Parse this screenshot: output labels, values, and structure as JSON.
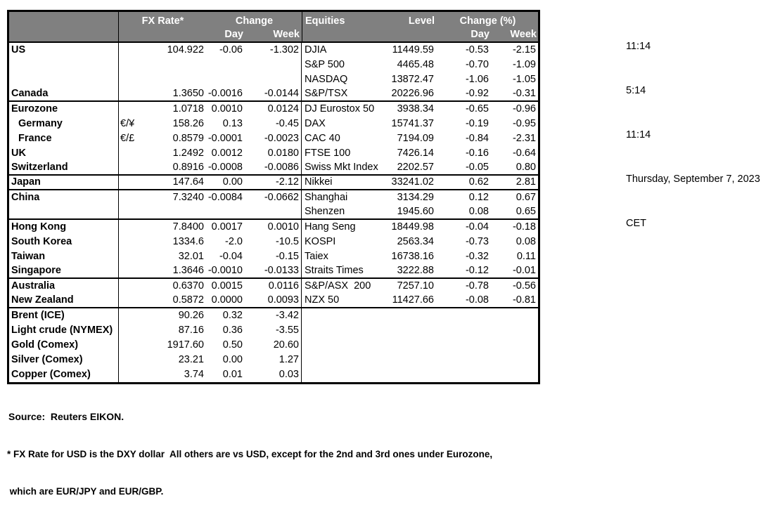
{
  "header": {
    "fx_rate": "FX Rate*",
    "change": "Change",
    "day": "Day",
    "week": "Week",
    "equities": "Equities",
    "level": "Level",
    "change_pct": "Change (%)"
  },
  "rows": [
    {
      "country": "US",
      "pair": "",
      "rate": "104.922",
      "day": "-0.06",
      "week": "-1.302",
      "equity": "DJIA",
      "level": "11449.59",
      "eday": "-0.53",
      "eweek": "-2.15",
      "sep": false,
      "indent": false
    },
    {
      "country": "",
      "pair": "",
      "rate": "",
      "day": "",
      "week": "",
      "equity": "S&P 500",
      "level": "4465.48",
      "eday": "-0.70",
      "eweek": "-1.09",
      "sep": false,
      "indent": false
    },
    {
      "country": "",
      "pair": "",
      "rate": "",
      "day": "",
      "week": "",
      "equity": "NASDAQ",
      "level": "13872.47",
      "eday": "-1.06",
      "eweek": "-1.05",
      "sep": false,
      "indent": false
    },
    {
      "country": "Canada",
      "pair": "",
      "rate": "1.3650",
      "day": "-0.0016",
      "week": "-0.0144",
      "equity": "S&P/TSX",
      "level": "20226.96",
      "eday": "-0.92",
      "eweek": "-0.31",
      "sep": true,
      "indent": false
    },
    {
      "country": "Eurozone",
      "pair": "",
      "rate": "1.0718",
      "day": "0.0010",
      "week": "0.0124",
      "equity": "DJ Eurostox 50",
      "level": "3938.34",
      "eday": "-0.65",
      "eweek": "-0.96",
      "sep": false,
      "indent": false
    },
    {
      "country": "Germany",
      "pair": "€/¥",
      "rate": "158.26",
      "day": "0.13",
      "week": "-0.45",
      "equity": "DAX",
      "level": "15741.37",
      "eday": "-0.19",
      "eweek": "-0.95",
      "sep": false,
      "indent": true
    },
    {
      "country": "France",
      "pair": "€/£",
      "rate": "0.8579",
      "day": "-0.0001",
      "week": "-0.0023",
      "equity": "CAC 40",
      "level": "7194.09",
      "eday": "-0.84",
      "eweek": "-2.31",
      "sep": false,
      "indent": true
    },
    {
      "country": "UK",
      "pair": "",
      "rate": "1.2492",
      "day": "0.0012",
      "week": "0.0180",
      "equity": "FTSE 100",
      "level": "7426.14",
      "eday": "-0.16",
      "eweek": "-0.64",
      "sep": false,
      "indent": false
    },
    {
      "country": "Switzerland",
      "pair": "",
      "rate": "0.8916",
      "day": "-0.0008",
      "week": "-0.0086",
      "equity": "Swiss Mkt Index",
      "level": "2202.57",
      "eday": "-0.05",
      "eweek": "0.80",
      "sep": true,
      "indent": false
    },
    {
      "country": "Japan",
      "pair": "",
      "rate": "147.64",
      "day": "0.00",
      "week": "-2.12",
      "equity": "Nikkei",
      "level": "33241.02",
      "eday": "0.62",
      "eweek": "2.81",
      "sep": true,
      "indent": false
    },
    {
      "country": "China",
      "pair": "",
      "rate": "7.3240",
      "day": "-0.0084",
      "week": "-0.0662",
      "equity": "Shanghai",
      "level": "3134.29",
      "eday": "0.12",
      "eweek": "0.67",
      "sep": false,
      "indent": false
    },
    {
      "country": "",
      "pair": "",
      "rate": "",
      "day": "",
      "week": "",
      "equity": "Shenzen",
      "level": "1945.60",
      "eday": "0.08",
      "eweek": "0.65",
      "sep": true,
      "indent": false
    },
    {
      "country": "Hong Kong",
      "pair": "",
      "rate": "7.8400",
      "day": "0.0017",
      "week": "0.0010",
      "equity": "Hang Seng",
      "level": "18449.98",
      "eday": "-0.04",
      "eweek": "-0.18",
      "sep": false,
      "indent": false
    },
    {
      "country": "South Korea",
      "pair": "",
      "rate": "1334.6",
      "day": "-2.0",
      "week": "-10.5",
      "equity": "KOSPI",
      "level": "2563.34",
      "eday": "-0.73",
      "eweek": "0.08",
      "sep": false,
      "indent": false
    },
    {
      "country": "Taiwan",
      "pair": "",
      "rate": "32.01",
      "day": "-0.04",
      "week": "-0.15",
      "equity": "Taiex",
      "level": "16738.16",
      "eday": "-0.32",
      "eweek": "0.11",
      "sep": false,
      "indent": false
    },
    {
      "country": "Singapore",
      "pair": "",
      "rate": "1.3646",
      "day": "-0.0010",
      "week": "-0.0133",
      "equity": "Straits Times",
      "level": "3222.88",
      "eday": "-0.12",
      "eweek": "-0.01",
      "sep": true,
      "indent": false
    },
    {
      "country": "Australia",
      "pair": "",
      "rate": "0.6370",
      "day": "0.0015",
      "week": "0.0116",
      "equity": "S&P/ASX  200",
      "level": "7257.10",
      "eday": "-0.78",
      "eweek": "-0.56",
      "sep": false,
      "indent": false
    },
    {
      "country": "New Zealand",
      "pair": "",
      "rate": "0.5872",
      "day": "0.0000",
      "week": "0.0093",
      "equity": "NZX 50",
      "level": "11427.66",
      "eday": "-0.08",
      "eweek": "-0.81",
      "sep": true,
      "indent": false
    },
    {
      "country": "Brent (ICE)",
      "pair": "",
      "rate": "90.26",
      "day": "0.32",
      "week": "-3.42",
      "equity": "",
      "level": "",
      "eday": "",
      "eweek": "",
      "sep": false,
      "indent": false
    },
    {
      "country": "Light crude (NYMEX)",
      "pair": "",
      "rate": "87.16",
      "day": "0.36",
      "week": "-3.55",
      "equity": "",
      "level": "",
      "eday": "",
      "eweek": "",
      "sep": false,
      "indent": false
    },
    {
      "country": "Gold (Comex)",
      "pair": "",
      "rate": "1917.60",
      "day": "0.50",
      "week": "20.60",
      "equity": "",
      "level": "",
      "eday": "",
      "eweek": "",
      "sep": false,
      "indent": false
    },
    {
      "country": "Silver (Comex)",
      "pair": "",
      "rate": "23.21",
      "day": "0.00",
      "week": "1.27",
      "equity": "",
      "level": "",
      "eday": "",
      "eweek": "",
      "sep": false,
      "indent": false
    },
    {
      "country": "Copper (Comex)",
      "pair": "",
      "rate": "3.74",
      "day": "0.01",
      "week": "0.03",
      "equity": "",
      "level": "",
      "eday": "",
      "eweek": "",
      "sep": false,
      "indent": false
    }
  ],
  "clock": {
    "times": [
      "11:14",
      "5:14",
      "11:14"
    ],
    "date": "Thursday, September 7, 2023",
    "timezone": "CET"
  },
  "footer": {
    "source": "Source:  Reuters EIKON.",
    "note1": "* FX Rate for USD is the DXY dollar  All others are vs USD, except for the 2nd and 3rd ones under Eurozone,",
    "note2": " which are EUR/JPY and EUR/GBP."
  },
  "colors": {
    "header_bg": "#808080",
    "header_text": "#ffffff",
    "border": "#000000"
  }
}
